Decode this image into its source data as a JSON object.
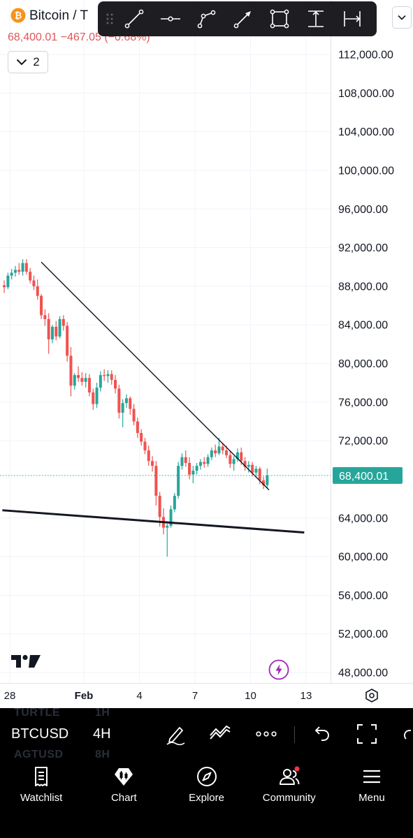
{
  "header": {
    "title": "Bitcoin / T",
    "price_line": "68,400.01  −467.05 (−0.68%)",
    "layers_count": "2"
  },
  "colors": {
    "up": "#26a69a",
    "down": "#ef5350",
    "price_label_bg": "#26a69a",
    "change_text": "#e0565a",
    "toolbar_bg": "#1e1e22"
  },
  "drawing_toolbar": {
    "tools": [
      "trend-line-tool",
      "horizontal-ray-tool",
      "polyline-tool",
      "arrow-tool",
      "rectangle-tool",
      "price-range-tool",
      "date-range-tool"
    ]
  },
  "chart_data": {
    "type": "candlestick",
    "symbol": "BTCUSD",
    "interval": "4H",
    "last_price": 68400.01,
    "last_price_label": "68,400.01",
    "y_ticks": [
      "112,000.00",
      "108,000.00",
      "104,000.00",
      "100,000.00",
      "96,000.00",
      "92,000.00",
      "88,000.00",
      "84,000.00",
      "80,000.00",
      "76,000.00",
      "72,000.00",
      "64,000.00",
      "60,000.00",
      "56,000.00",
      "52,000.00",
      "48,000.00"
    ],
    "y_tick_values": [
      112000,
      108000,
      104000,
      100000,
      96000,
      92000,
      88000,
      84000,
      80000,
      76000,
      72000,
      64000,
      60000,
      56000,
      52000,
      48000
    ],
    "x_ticks": [
      "28",
      "Feb",
      "4",
      "7",
      "10",
      "13"
    ],
    "x_tick_days": [
      28,
      32,
      35,
      38,
      41,
      44
    ],
    "ylim": [
      46000,
      116000
    ],
    "xlim": [
      27.6,
      45.5
    ],
    "grid": true,
    "drawings": [
      {
        "type": "trend_line",
        "from": {
          "day": 29.7,
          "price": 90500
        },
        "to": {
          "day": 42.0,
          "price": 66900
        },
        "color": "#131722"
      },
      {
        "type": "trend_line",
        "from": {
          "day": 27.6,
          "price": 64800
        },
        "to": {
          "day": 43.9,
          "price": 62500
        },
        "color": "#131722"
      }
    ],
    "candles": [
      {
        "day": 27.7,
        "o": 88100,
        "h": 88600,
        "l": 87300,
        "c": 87900
      },
      {
        "day": 27.9,
        "o": 87900,
        "h": 89400,
        "l": 87700,
        "c": 89100
      },
      {
        "day": 28.1,
        "o": 89100,
        "h": 89800,
        "l": 88700,
        "c": 89400
      },
      {
        "day": 28.3,
        "o": 89400,
        "h": 90100,
        "l": 89000,
        "c": 89700
      },
      {
        "day": 28.5,
        "o": 89700,
        "h": 90400,
        "l": 89200,
        "c": 89500
      },
      {
        "day": 28.7,
        "o": 89500,
        "h": 90800,
        "l": 89100,
        "c": 90400
      },
      {
        "day": 28.9,
        "o": 90400,
        "h": 90800,
        "l": 89200,
        "c": 89500
      },
      {
        "day": 29.1,
        "o": 89500,
        "h": 89900,
        "l": 88300,
        "c": 88600
      },
      {
        "day": 29.3,
        "o": 88600,
        "h": 89100,
        "l": 87600,
        "c": 88000
      },
      {
        "day": 29.5,
        "o": 88000,
        "h": 88700,
        "l": 86600,
        "c": 87000
      },
      {
        "day": 29.7,
        "o": 87000,
        "h": 87200,
        "l": 84600,
        "c": 85000
      },
      {
        "day": 29.9,
        "o": 85000,
        "h": 85600,
        "l": 83900,
        "c": 84600
      },
      {
        "day": 30.1,
        "o": 84600,
        "h": 85200,
        "l": 81000,
        "c": 82500
      },
      {
        "day": 30.3,
        "o": 82500,
        "h": 84000,
        "l": 82100,
        "c": 83800
      },
      {
        "day": 30.5,
        "o": 83800,
        "h": 84400,
        "l": 82400,
        "c": 82800
      },
      {
        "day": 30.7,
        "o": 82800,
        "h": 84900,
        "l": 82600,
        "c": 84600
      },
      {
        "day": 30.9,
        "o": 84600,
        "h": 85000,
        "l": 83400,
        "c": 83900
      },
      {
        "day": 31.1,
        "o": 83900,
        "h": 84300,
        "l": 80200,
        "c": 80800
      },
      {
        "day": 31.3,
        "o": 80800,
        "h": 81700,
        "l": 76600,
        "c": 77700
      },
      {
        "day": 31.5,
        "o": 77700,
        "h": 79000,
        "l": 77300,
        "c": 78800
      },
      {
        "day": 31.7,
        "o": 78800,
        "h": 79700,
        "l": 78100,
        "c": 78500
      },
      {
        "day": 31.9,
        "o": 78500,
        "h": 79100,
        "l": 77700,
        "c": 78100
      },
      {
        "day": 32.1,
        "o": 78100,
        "h": 79000,
        "l": 77500,
        "c": 78500
      },
      {
        "day": 32.3,
        "o": 78500,
        "h": 78900,
        "l": 76600,
        "c": 77000
      },
      {
        "day": 32.5,
        "o": 77000,
        "h": 77400,
        "l": 75200,
        "c": 75800
      },
      {
        "day": 32.7,
        "o": 75800,
        "h": 78000,
        "l": 75400,
        "c": 77500
      },
      {
        "day": 32.9,
        "o": 77500,
        "h": 79200,
        "l": 77100,
        "c": 78800
      },
      {
        "day": 33.1,
        "o": 78800,
        "h": 79400,
        "l": 78200,
        "c": 78700
      },
      {
        "day": 33.3,
        "o": 78700,
        "h": 79300,
        "l": 78000,
        "c": 78900
      },
      {
        "day": 33.5,
        "o": 78900,
        "h": 79300,
        "l": 77800,
        "c": 78300
      },
      {
        "day": 33.7,
        "o": 78300,
        "h": 78800,
        "l": 76900,
        "c": 77400
      },
      {
        "day": 33.9,
        "o": 77400,
        "h": 77800,
        "l": 74300,
        "c": 74900
      },
      {
        "day": 34.1,
        "o": 74900,
        "h": 76300,
        "l": 73400,
        "c": 75900
      },
      {
        "day": 34.3,
        "o": 75900,
        "h": 76800,
        "l": 75400,
        "c": 76400
      },
      {
        "day": 34.5,
        "o": 76400,
        "h": 76600,
        "l": 74700,
        "c": 75300
      },
      {
        "day": 34.7,
        "o": 75300,
        "h": 75800,
        "l": 73600,
        "c": 74000
      },
      {
        "day": 34.9,
        "o": 74000,
        "h": 74400,
        "l": 72300,
        "c": 72800
      },
      {
        "day": 35.1,
        "o": 72800,
        "h": 73200,
        "l": 71500,
        "c": 71900
      },
      {
        "day": 35.3,
        "o": 71900,
        "h": 72300,
        "l": 70600,
        "c": 71000
      },
      {
        "day": 35.5,
        "o": 71000,
        "h": 71500,
        "l": 69400,
        "c": 69900
      },
      {
        "day": 35.7,
        "o": 69900,
        "h": 70400,
        "l": 68800,
        "c": 69400
      },
      {
        "day": 35.9,
        "o": 69400,
        "h": 69900,
        "l": 65300,
        "c": 66300
      },
      {
        "day": 36.1,
        "o": 66300,
        "h": 66700,
        "l": 63100,
        "c": 64100
      },
      {
        "day": 36.3,
        "o": 64100,
        "h": 65000,
        "l": 62300,
        "c": 63000
      },
      {
        "day": 36.5,
        "o": 63000,
        "h": 63400,
        "l": 60000,
        "c": 63200
      },
      {
        "day": 36.7,
        "o": 63200,
        "h": 65300,
        "l": 63000,
        "c": 64900
      },
      {
        "day": 36.9,
        "o": 64900,
        "h": 66600,
        "l": 64600,
        "c": 66300
      },
      {
        "day": 37.1,
        "o": 66300,
        "h": 69800,
        "l": 66000,
        "c": 69400
      },
      {
        "day": 37.3,
        "o": 69400,
        "h": 70700,
        "l": 69000,
        "c": 70300
      },
      {
        "day": 37.5,
        "o": 70300,
        "h": 71000,
        "l": 69300,
        "c": 69700
      },
      {
        "day": 37.7,
        "o": 69700,
        "h": 70300,
        "l": 68000,
        "c": 68500
      },
      {
        "day": 37.9,
        "o": 68500,
        "h": 69400,
        "l": 67600,
        "c": 68900
      },
      {
        "day": 38.1,
        "o": 68900,
        "h": 69700,
        "l": 68500,
        "c": 69400
      },
      {
        "day": 38.3,
        "o": 69400,
        "h": 70100,
        "l": 69000,
        "c": 69800
      },
      {
        "day": 38.5,
        "o": 69800,
        "h": 70300,
        "l": 69200,
        "c": 69600
      },
      {
        "day": 38.7,
        "o": 69600,
        "h": 70600,
        "l": 69300,
        "c": 70300
      },
      {
        "day": 38.9,
        "o": 70300,
        "h": 71300,
        "l": 70000,
        "c": 71000
      },
      {
        "day": 39.1,
        "o": 71000,
        "h": 71600,
        "l": 70300,
        "c": 70700
      },
      {
        "day": 39.3,
        "o": 70700,
        "h": 72300,
        "l": 70500,
        "c": 71400
      },
      {
        "day": 39.5,
        "o": 71400,
        "h": 71800,
        "l": 70600,
        "c": 71000
      },
      {
        "day": 39.7,
        "o": 71000,
        "h": 71500,
        "l": 70200,
        "c": 70500
      },
      {
        "day": 39.9,
        "o": 70500,
        "h": 71000,
        "l": 69200,
        "c": 69600
      },
      {
        "day": 40.1,
        "o": 69600,
        "h": 70400,
        "l": 68900,
        "c": 70100
      },
      {
        "day": 40.3,
        "o": 70100,
        "h": 71200,
        "l": 69800,
        "c": 70800
      },
      {
        "day": 40.5,
        "o": 70800,
        "h": 71300,
        "l": 69500,
        "c": 69900
      },
      {
        "day": 40.7,
        "o": 69900,
        "h": 70300,
        "l": 68900,
        "c": 69300
      },
      {
        "day": 40.9,
        "o": 69300,
        "h": 69900,
        "l": 68700,
        "c": 69500
      },
      {
        "day": 41.1,
        "o": 69500,
        "h": 69800,
        "l": 68300,
        "c": 68700
      },
      {
        "day": 41.3,
        "o": 68700,
        "h": 69400,
        "l": 68200,
        "c": 69100
      },
      {
        "day": 41.5,
        "o": 69100,
        "h": 69300,
        "l": 67500,
        "c": 67900
      },
      {
        "day": 41.7,
        "o": 67900,
        "h": 68300,
        "l": 67000,
        "c": 67400
      },
      {
        "day": 41.9,
        "o": 67400,
        "h": 69100,
        "l": 67100,
        "c": 68400
      }
    ]
  },
  "time_axis": {
    "settings_icon": "hexagon-settings-icon"
  },
  "instrument_bar": {
    "symbol": "BTCUSD",
    "interval": "4H",
    "ghost_rows": [
      {
        "symbol": "TURTLE",
        "interval": "1H"
      },
      {
        "symbol": "AGTUSD",
        "interval": "8H"
      }
    ]
  },
  "bottom_nav": [
    {
      "label": "Watchlist",
      "icon": "watchlist-icon"
    },
    {
      "label": "Chart",
      "icon": "chart-icon"
    },
    {
      "label": "Explore",
      "icon": "compass-icon"
    },
    {
      "label": "Community",
      "icon": "community-icon"
    },
    {
      "label": "Menu",
      "icon": "menu-icon"
    }
  ]
}
